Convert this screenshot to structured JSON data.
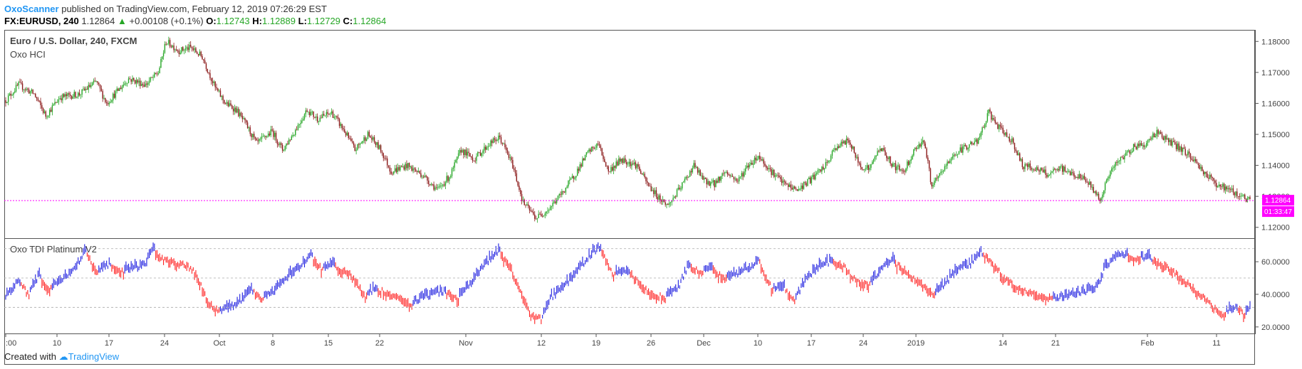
{
  "header": {
    "publisher": "OxoScanner",
    "published_text": "published on TradingView.com, February 12, 2019 07:26:29 EST",
    "symbol": "FX:EURUSD, 240",
    "last": "1.12864",
    "change": "+0.00108 (+0.1%)",
    "open_label": "O:",
    "open": "1.12743",
    "high_label": "H:",
    "high": "1.12889",
    "low_label": "L:",
    "low": "1.12729",
    "close_label": "C:",
    "close": "1.12864"
  },
  "price_pane": {
    "title": "Euro / U.S. Dollar, 240, FXCM",
    "indicator": "Oxo HCI",
    "price_tag": "1.12864",
    "countdown_tag": "01:33:47"
  },
  "osc_pane": {
    "title": "Oxo TDI Platinum V2"
  },
  "footer": {
    "created_with": "Created with",
    "brand": "TradingView"
  },
  "colors": {
    "up": "#26a626",
    "down": "#8b1a1a",
    "osc_up": "#1f1fe0",
    "osc_down": "#ff2020",
    "price_line": "#ff00ff",
    "publisher": "#2196f3"
  },
  "chart_data": [
    {
      "type": "candlestick",
      "title": "Euro / U.S. Dollar, 240, FXCM",
      "y_ticks": [
        "1.12000",
        "1.13000",
        "1.14000",
        "1.15000",
        "1.16000",
        "1.17000",
        "1.18000"
      ],
      "ylim": [
        1.1165,
        1.1835
      ],
      "current_price": 1.12864,
      "x_ticks": [
        ":00",
        "10",
        "17",
        "24",
        "Oct",
        "8",
        "15",
        "22",
        "Nov",
        "12",
        "19",
        "26",
        "Dec",
        "10",
        "17",
        "24",
        "2019",
        "14",
        "21",
        "Feb",
        "11"
      ],
      "close_path": [
        [
          0,
          1.161
        ],
        [
          10,
          1.166
        ],
        [
          22,
          1.163
        ],
        [
          31,
          1.156
        ],
        [
          42,
          1.162
        ],
        [
          57,
          1.163
        ],
        [
          70,
          1.167
        ],
        [
          78,
          1.16
        ],
        [
          95,
          1.168
        ],
        [
          108,
          1.166
        ],
        [
          118,
          1.17
        ],
        [
          124,
          1.18
        ],
        [
          134,
          1.177
        ],
        [
          143,
          1.178
        ],
        [
          152,
          1.175
        ],
        [
          162,
          1.165
        ],
        [
          170,
          1.16
        ],
        [
          178,
          1.158
        ],
        [
          186,
          1.153
        ],
        [
          194,
          1.147
        ],
        [
          206,
          1.151
        ],
        [
          214,
          1.145
        ],
        [
          222,
          1.15
        ],
        [
          233,
          1.158
        ],
        [
          241,
          1.155
        ],
        [
          252,
          1.157
        ],
        [
          262,
          1.151
        ],
        [
          270,
          1.145
        ],
        [
          280,
          1.15
        ],
        [
          290,
          1.145
        ],
        [
          298,
          1.138
        ],
        [
          310,
          1.14
        ],
        [
          322,
          1.137
        ],
        [
          334,
          1.132
        ],
        [
          344,
          1.137
        ],
        [
          352,
          1.145
        ],
        [
          362,
          1.142
        ],
        [
          374,
          1.147
        ],
        [
          382,
          1.149
        ],
        [
          392,
          1.14
        ],
        [
          400,
          1.128
        ],
        [
          410,
          1.123
        ],
        [
          420,
          1.126
        ],
        [
          430,
          1.131
        ],
        [
          440,
          1.137
        ],
        [
          450,
          1.144
        ],
        [
          458,
          1.147
        ],
        [
          466,
          1.138
        ],
        [
          476,
          1.142
        ],
        [
          488,
          1.14
        ],
        [
          496,
          1.134
        ],
        [
          504,
          1.13
        ],
        [
          512,
          1.127
        ],
        [
          522,
          1.133
        ],
        [
          532,
          1.14
        ],
        [
          540,
          1.135
        ],
        [
          548,
          1.134
        ],
        [
          556,
          1.138
        ],
        [
          566,
          1.135
        ],
        [
          574,
          1.14
        ],
        [
          582,
          1.143
        ],
        [
          592,
          1.138
        ],
        [
          602,
          1.134
        ],
        [
          612,
          1.132
        ],
        [
          624,
          1.136
        ],
        [
          634,
          1.14
        ],
        [
          642,
          1.146
        ],
        [
          652,
          1.148
        ],
        [
          660,
          1.14
        ],
        [
          668,
          1.139
        ],
        [
          676,
          1.146
        ],
        [
          686,
          1.14
        ],
        [
          694,
          1.138
        ],
        [
          704,
          1.146
        ],
        [
          710,
          1.148
        ],
        [
          716,
          1.133
        ],
        [
          724,
          1.138
        ],
        [
          732,
          1.143
        ],
        [
          742,
          1.146
        ],
        [
          752,
          1.148
        ],
        [
          760,
          1.157
        ],
        [
          768,
          1.152
        ],
        [
          778,
          1.148
        ],
        [
          786,
          1.14
        ],
        [
          796,
          1.139
        ],
        [
          806,
          1.137
        ],
        [
          816,
          1.139
        ],
        [
          826,
          1.137
        ],
        [
          836,
          1.135
        ],
        [
          846,
          1.129
        ],
        [
          854,
          1.138
        ],
        [
          862,
          1.142
        ],
        [
          872,
          1.146
        ],
        [
          882,
          1.147
        ],
        [
          890,
          1.151
        ],
        [
          898,
          1.148
        ],
        [
          906,
          1.146
        ],
        [
          916,
          1.143
        ],
        [
          926,
          1.138
        ],
        [
          936,
          1.134
        ],
        [
          946,
          1.132
        ],
        [
          956,
          1.13
        ],
        [
          962,
          1.1286
        ]
      ]
    },
    {
      "type": "oscillator",
      "title": "Oxo TDI Platinum V2",
      "y_ticks": [
        "20.0000",
        "40.0000",
        "60.0000"
      ],
      "ylim": [
        16,
        74
      ],
      "levels": [
        32,
        50,
        68
      ],
      "path": [
        [
          0,
          38
        ],
        [
          10,
          48
        ],
        [
          18,
          40
        ],
        [
          26,
          52
        ],
        [
          34,
          44
        ],
        [
          44,
          48
        ],
        [
          54,
          56
        ],
        [
          62,
          66
        ],
        [
          70,
          54
        ],
        [
          80,
          58
        ],
        [
          90,
          54
        ],
        [
          98,
          55
        ],
        [
          108,
          58
        ],
        [
          114,
          68
        ],
        [
          120,
          62
        ],
        [
          130,
          60
        ],
        [
          140,
          58
        ],
        [
          148,
          52
        ],
        [
          156,
          36
        ],
        [
          164,
          30
        ],
        [
          172,
          31
        ],
        [
          182,
          35
        ],
        [
          190,
          42
        ],
        [
          198,
          38
        ],
        [
          208,
          42
        ],
        [
          218,
          50
        ],
        [
          228,
          56
        ],
        [
          236,
          64
        ],
        [
          244,
          56
        ],
        [
          254,
          58
        ],
        [
          262,
          55
        ],
        [
          270,
          50
        ],
        [
          278,
          38
        ],
        [
          286,
          44
        ],
        [
          296,
          40
        ],
        [
          306,
          38
        ],
        [
          314,
          34
        ],
        [
          322,
          38
        ],
        [
          332,
          40
        ],
        [
          340,
          42
        ],
        [
          350,
          38
        ],
        [
          360,
          46
        ],
        [
          370,
          58
        ],
        [
          382,
          66
        ],
        [
          390,
          58
        ],
        [
          398,
          42
        ],
        [
          406,
          28
        ],
        [
          414,
          25
        ],
        [
          422,
          38
        ],
        [
          432,
          44
        ],
        [
          442,
          54
        ],
        [
          452,
          64
        ],
        [
          460,
          69
        ],
        [
          470,
          52
        ],
        [
          482,
          54
        ],
        [
          492,
          46
        ],
        [
          500,
          40
        ],
        [
          510,
          38
        ],
        [
          520,
          44
        ],
        [
          528,
          58
        ],
        [
          538,
          54
        ],
        [
          546,
          56
        ],
        [
          556,
          50
        ],
        [
          566,
          52
        ],
        [
          576,
          56
        ],
        [
          582,
          61
        ],
        [
          592,
          44
        ],
        [
          602,
          44
        ],
        [
          610,
          37
        ],
        [
          620,
          50
        ],
        [
          628,
          56
        ],
        [
          638,
          60
        ],
        [
          648,
          58
        ],
        [
          658,
          48
        ],
        [
          668,
          46
        ],
        [
          678,
          56
        ],
        [
          686,
          60
        ],
        [
          694,
          56
        ],
        [
          702,
          50
        ],
        [
          710,
          46
        ],
        [
          718,
          40
        ],
        [
          728,
          48
        ],
        [
          738,
          56
        ],
        [
          746,
          58
        ],
        [
          754,
          66
        ],
        [
          762,
          60
        ],
        [
          772,
          50
        ],
        [
          784,
          44
        ],
        [
          796,
          40
        ],
        [
          808,
          38
        ],
        [
          818,
          38
        ],
        [
          828,
          40
        ],
        [
          836,
          42
        ],
        [
          844,
          44
        ],
        [
          850,
          56
        ],
        [
          856,
          62
        ],
        [
          866,
          64
        ],
        [
          876,
          62
        ],
        [
          886,
          62
        ],
        [
          896,
          58
        ],
        [
          906,
          52
        ],
        [
          916,
          46
        ],
        [
          926,
          38
        ],
        [
          934,
          32
        ],
        [
          942,
          28
        ],
        [
          952,
          32
        ],
        [
          958,
          28
        ],
        [
          962,
          31
        ]
      ]
    }
  ]
}
